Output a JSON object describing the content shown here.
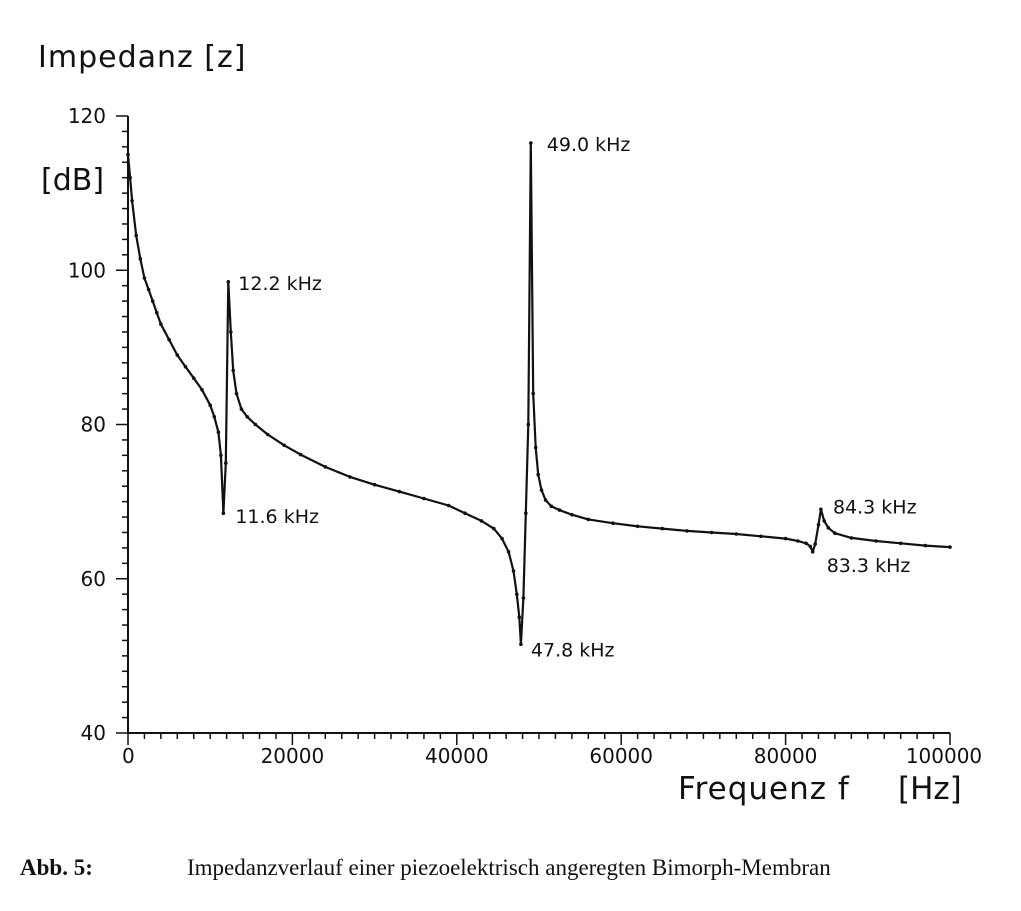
{
  "chart_data": {
    "type": "line",
    "ylabel": "Impedanz [z]",
    "yunit": "[dB]",
    "xlabel": "Frequenz  f",
    "xunit": "[Hz]",
    "xlim": [
      0,
      100000
    ],
    "ylim": [
      40,
      120
    ],
    "xticks": [
      0,
      20000,
      40000,
      60000,
      80000,
      100000
    ],
    "xtick_labels": [
      "0",
      "20000",
      "40000",
      "60000",
      "80000",
      "100000"
    ],
    "yticks": [
      40,
      60,
      80,
      100,
      120
    ],
    "ytick_labels": [
      "40",
      "60",
      "80",
      "100",
      "120"
    ],
    "grid": false,
    "series": [
      {
        "x": [
          0,
          250,
          500,
          1000,
          1500,
          2000,
          2500,
          3000,
          3500,
          4000,
          5000,
          6000,
          7000,
          8000,
          9000,
          10000,
          10500,
          11000,
          11300,
          11600,
          11900,
          12200,
          12500,
          12800,
          13200,
          13800,
          14500,
          15500,
          17000,
          19000,
          21000,
          24000,
          27000,
          30000,
          33000,
          36000,
          39000,
          41000,
          43000,
          44500,
          45500,
          46300,
          46900,
          47300,
          47600,
          47800,
          48100,
          48400,
          48700,
          49000,
          49300,
          49600,
          49900,
          50300,
          50800,
          51500,
          52500,
          54000,
          56000,
          59000,
          62000,
          65000,
          68000,
          71000,
          74000,
          77000,
          80000,
          81500,
          82500,
          83000,
          83300,
          83600,
          84000,
          84300,
          84700,
          85200,
          86000,
          88000,
          91000,
          94000,
          97000,
          100000
        ],
        "y": [
          115,
          112,
          109,
          104.5,
          101.5,
          99,
          97.5,
          96,
          94.5,
          93,
          91,
          89,
          87.5,
          86,
          84.5,
          82.5,
          81,
          79,
          76,
          68.5,
          75,
          98.5,
          92,
          87,
          84,
          82,
          81,
          80,
          78.7,
          77.3,
          76.1,
          74.5,
          73.2,
          72.2,
          71.3,
          70.4,
          69.5,
          68.5,
          67.5,
          66.5,
          65.2,
          63.5,
          61,
          58,
          55,
          51.5,
          57.5,
          68.5,
          80,
          116.5,
          84,
          77,
          73.5,
          71.5,
          70.2,
          69.4,
          68.9,
          68.3,
          67.7,
          67.2,
          66.8,
          66.5,
          66.2,
          66,
          65.8,
          65.5,
          65.2,
          64.9,
          64.6,
          64.2,
          63.5,
          64.5,
          67,
          69,
          67.5,
          66.6,
          65.9,
          65.3,
          64.9,
          64.6,
          64.3,
          64.1
        ]
      }
    ],
    "annotations": [
      {
        "text": "12.2 kHz",
        "x": 12200,
        "y": 98.5
      },
      {
        "text": "11.6 kHz",
        "x": 11600,
        "y": 68.5
      },
      {
        "text": "49.0 kHz",
        "x": 49000,
        "y": 116.5
      },
      {
        "text": "47.8 kHz",
        "x": 47800,
        "y": 51.5
      },
      {
        "text": "84.3 kHz",
        "x": 84300,
        "y": 69
      },
      {
        "text": "83.3 kHz",
        "x": 83300,
        "y": 63.5
      }
    ]
  },
  "caption": {
    "label": "Abb. 5:",
    "text": "Impedanzverlauf einer piezoelektrisch angeregten Bimorph-Membran"
  }
}
